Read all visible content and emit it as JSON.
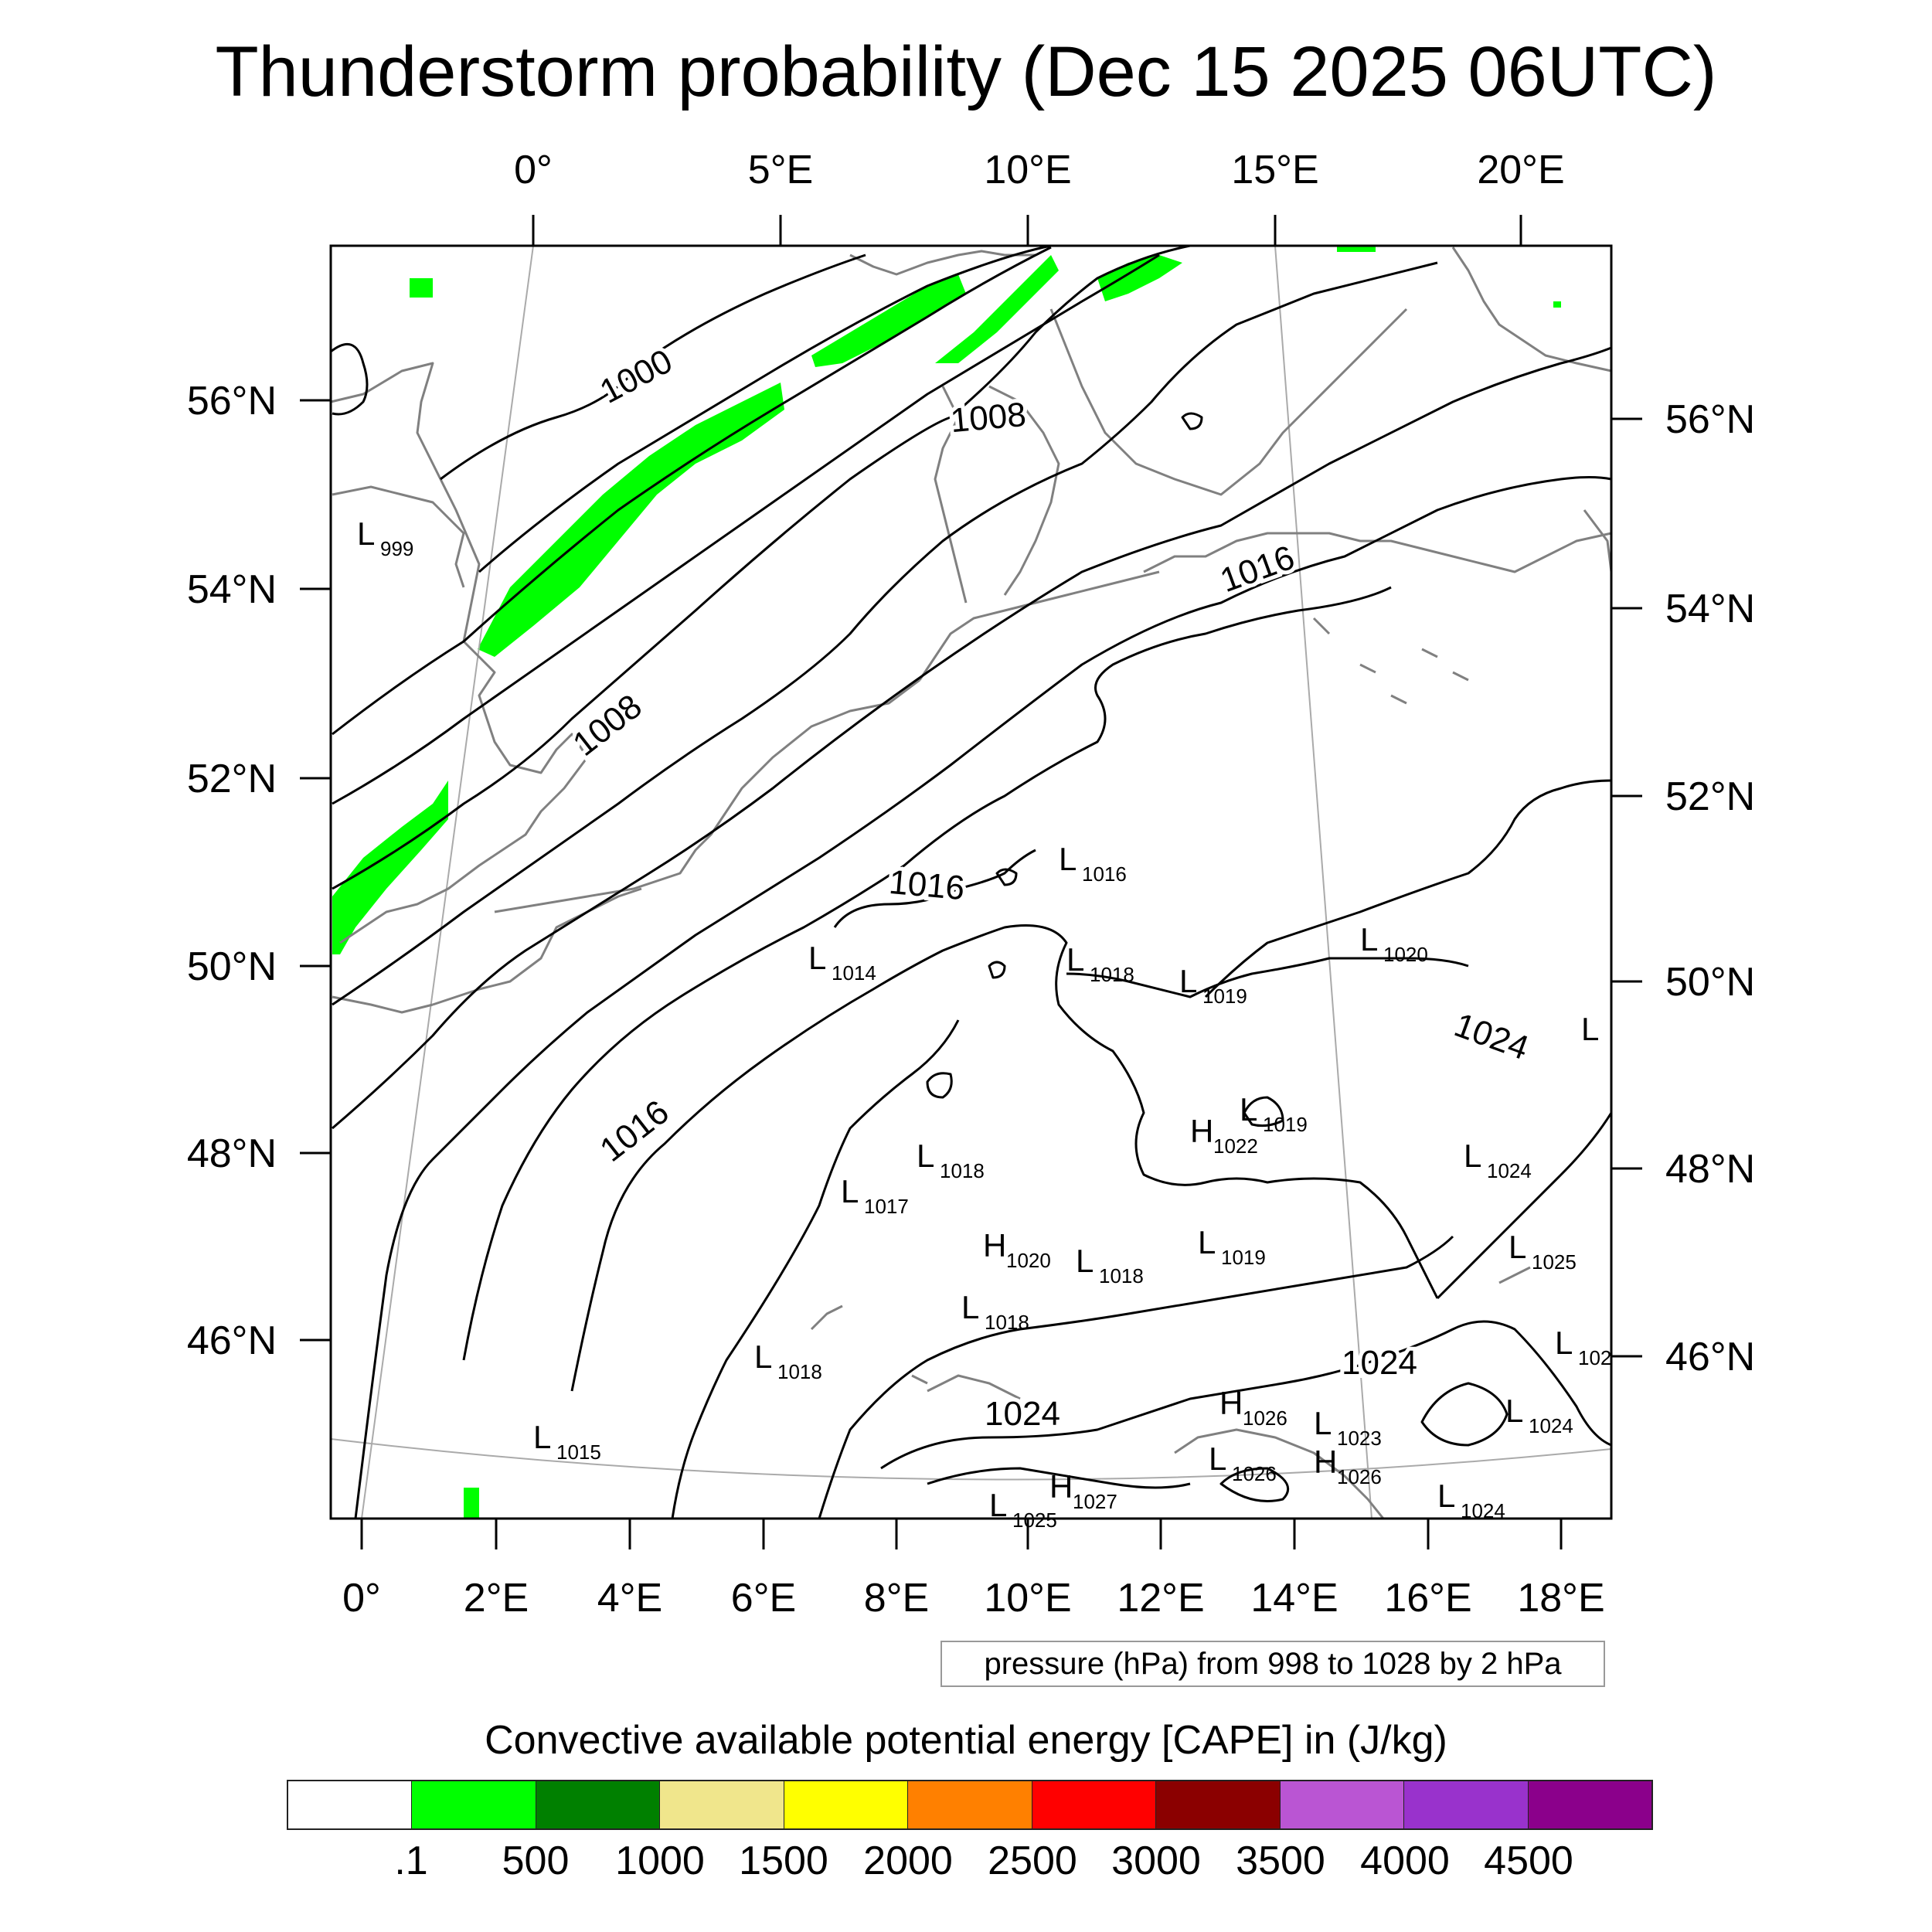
{
  "title": "Thunderstorm probability (Dec 15 2025 06UTC)",
  "top_lon_labels": [
    "0°",
    "5°E",
    "10°E",
    "15°E",
    "20°E"
  ],
  "bottom_lon_labels": [
    "0°",
    "2°E",
    "4°E",
    "6°E",
    "8°E",
    "10°E",
    "12°E",
    "14°E",
    "16°E",
    "18°E"
  ],
  "left_lat_labels": [
    "56°N",
    "54°N",
    "52°N",
    "50°N",
    "48°N",
    "46°N"
  ],
  "right_lat_labels": [
    "56°N",
    "54°N",
    "52°N",
    "50°N",
    "48°N",
    "46°N"
  ],
  "contour_labels": [
    "1000",
    "1008",
    "1008",
    "1016",
    "1016",
    "1016",
    "1024",
    "1024",
    "1024"
  ],
  "pressure_centers": [
    {
      "type": "L",
      "value": "999"
    },
    {
      "type": "L",
      "value": "1016"
    },
    {
      "type": "L",
      "value": "1014"
    },
    {
      "type": "L",
      "value": "1018"
    },
    {
      "type": "L",
      "value": "1019"
    },
    {
      "type": "L",
      "value": "1020"
    },
    {
      "type": "L",
      "value": ""
    },
    {
      "type": "L",
      "value": "1019"
    },
    {
      "type": "H",
      "value": "1022"
    },
    {
      "type": "L",
      "value": "1018"
    },
    {
      "type": "L",
      "value": "1017"
    },
    {
      "type": "L",
      "value": "1024"
    },
    {
      "type": "H",
      "value": "1020"
    },
    {
      "type": "L",
      "value": "1018"
    },
    {
      "type": "L",
      "value": "1019"
    },
    {
      "type": "L",
      "value": "1025"
    },
    {
      "type": "L",
      "value": "1018"
    },
    {
      "type": "L",
      "value": "1018"
    },
    {
      "type": "L",
      "value": "102"
    },
    {
      "type": "H",
      "value": "1026"
    },
    {
      "type": "L",
      "value": "1024"
    },
    {
      "type": "L",
      "value": "1015"
    },
    {
      "type": "L",
      "value": "1023"
    },
    {
      "type": "L",
      "value": "1026"
    },
    {
      "type": "H",
      "value": "1026"
    },
    {
      "type": "H",
      "value": "1027"
    },
    {
      "type": "L",
      "value": "1024"
    },
    {
      "type": "L",
      "value": "1025"
    }
  ],
  "legend_note": "pressure (hPa) from 998 to 1028 by 2 hPa",
  "colorbar": {
    "title": "Convective available potential energy [CAPE] in (J/kg)",
    "colors": [
      "#ffffff",
      "#00ff00",
      "#008000",
      "#f0e68c",
      "#ffff00",
      "#ff8000",
      "#ff0000",
      "#8b0000",
      "#ba55d3",
      "#9932cc",
      "#8b008b"
    ],
    "tick_labels": [
      ".1",
      "500",
      "1000",
      "1500",
      "2000",
      "2500",
      "3000",
      "3500",
      "4000",
      "4500"
    ]
  },
  "colors": {
    "cape_field": "#00ff00",
    "coastline": "#808080",
    "isobar": "#000000",
    "graticule": "#aaaaaa"
  }
}
